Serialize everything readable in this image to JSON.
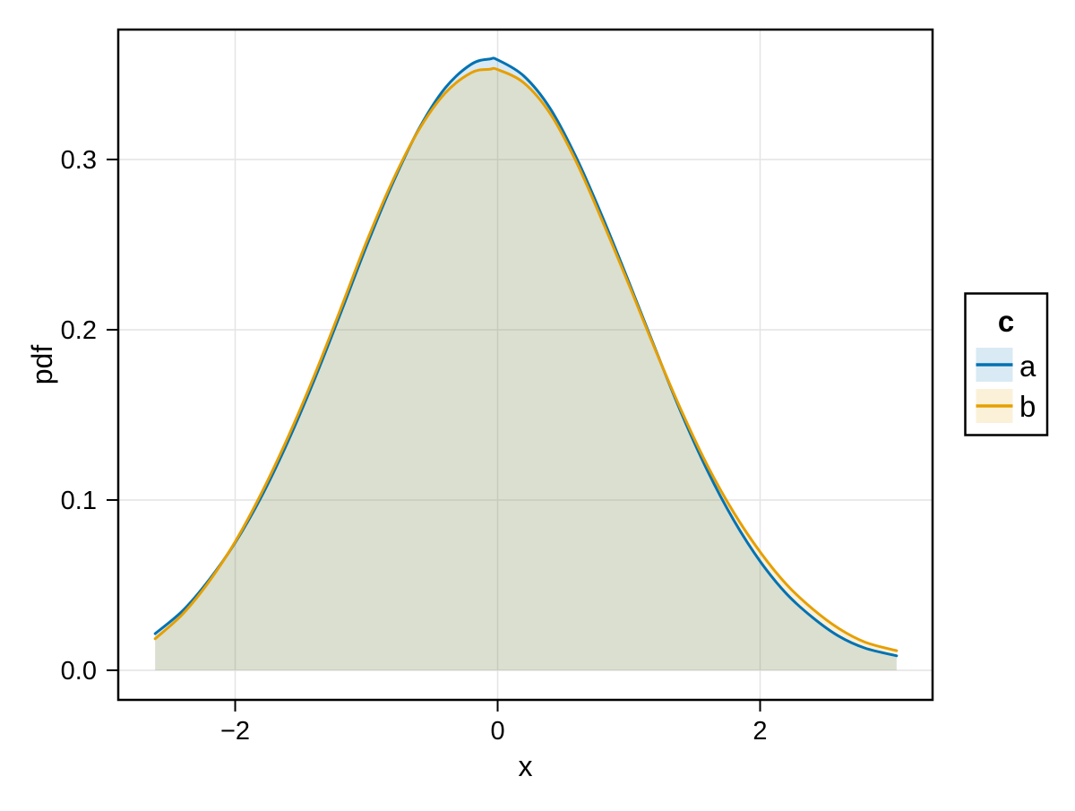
{
  "figure": {
    "background": "#ffffff"
  },
  "colors": {
    "frame": "#000000",
    "grid": "#e4e4e4",
    "tick": "#000000",
    "series_a": "#0072B2",
    "series_b": "#E69F00",
    "fill_opacity": 0.15
  },
  "chart_data": {
    "type": "area",
    "subtype": "density",
    "title": "",
    "xlabel": "x",
    "ylabel": "pdf",
    "grid": true,
    "xlim": [
      -2.891,
      3.314
    ],
    "ylim": [
      -0.0174,
      0.3763
    ],
    "x_ticks": {
      "values": [
        -2,
        0,
        2
      ],
      "labels": [
        "−2",
        "0",
        "2"
      ]
    },
    "y_ticks": {
      "values": [
        0,
        0.1,
        0.2,
        0.3
      ],
      "labels": [
        "0.0",
        "0.1",
        "0.2",
        "0.3"
      ]
    },
    "legend": {
      "title": "c",
      "position": "right-outside",
      "entries": [
        {
          "label": "a",
          "color": "#0072B2"
        },
        {
          "label": "b",
          "color": "#E69F00"
        }
      ]
    },
    "x": [
      -2.61,
      -2.4,
      -2.2,
      -2.0,
      -1.8,
      -1.6,
      -1.4,
      -1.2,
      -1.0,
      -0.8,
      -0.6,
      -0.4,
      -0.2,
      -0.06,
      0.0,
      0.2,
      0.4,
      0.6,
      0.8,
      1.0,
      1.2,
      1.4,
      1.6,
      1.8,
      2.0,
      2.2,
      2.4,
      2.6,
      2.8,
      3.04
    ],
    "series": [
      {
        "name": "a",
        "color": "#0072B2",
        "fill_opacity": 0.15,
        "line_width": 3,
        "values": [
          0.0215,
          0.035,
          0.053,
          0.075,
          0.102,
          0.134,
          0.17,
          0.209,
          0.249,
          0.286,
          0.318,
          0.342,
          0.356,
          0.359,
          0.3585,
          0.349,
          0.33,
          0.301,
          0.266,
          0.228,
          0.189,
          0.151,
          0.117,
          0.088,
          0.064,
          0.045,
          0.031,
          0.02,
          0.013,
          0.0085
        ]
      },
      {
        "name": "b",
        "color": "#E69F00",
        "fill_opacity": 0.15,
        "line_width": 3,
        "values": [
          0.0185,
          0.033,
          0.052,
          0.0755,
          0.104,
          0.1365,
          0.1725,
          0.2115,
          0.2515,
          0.2875,
          0.3175,
          0.339,
          0.351,
          0.353,
          0.3528,
          0.345,
          0.327,
          0.2985,
          0.2635,
          0.2265,
          0.1885,
          0.1525,
          0.12,
          0.0925,
          0.0695,
          0.0505,
          0.036,
          0.0245,
          0.0165,
          0.0115
        ]
      }
    ]
  }
}
